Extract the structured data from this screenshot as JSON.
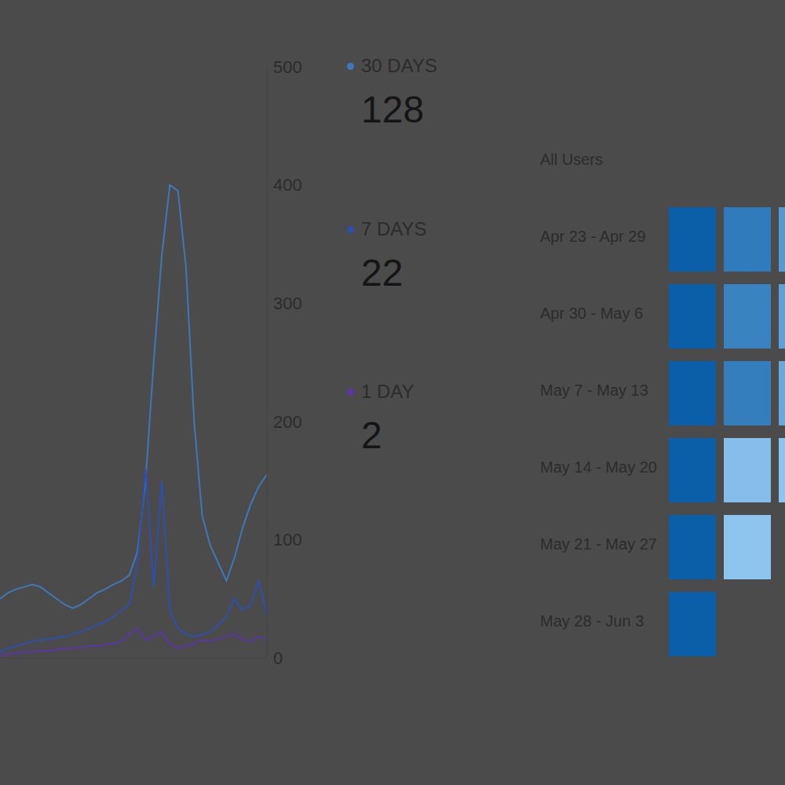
{
  "chart_data": [
    {
      "type": "line",
      "x": [
        0,
        1,
        2,
        3,
        4,
        5,
        6,
        7,
        8,
        9,
        10,
        11,
        12,
        13,
        14,
        15,
        16,
        17,
        18,
        19,
        20,
        21,
        22,
        23,
        24,
        25,
        26,
        27,
        28,
        29,
        30,
        31,
        32,
        33
      ],
      "xlim": [
        0,
        33
      ],
      "ylim": [
        0,
        500
      ],
      "yticks": [
        0,
        100,
        200,
        300,
        400,
        500
      ],
      "grid": false,
      "tick_labels": "y",
      "marker": "none",
      "series": [
        {
          "name": "30 DAYS",
          "total": 128,
          "color": "#3f78b8",
          "values": [
            50,
            55,
            58,
            60,
            62,
            60,
            55,
            50,
            45,
            42,
            45,
            50,
            55,
            58,
            62,
            65,
            70,
            90,
            150,
            250,
            340,
            400,
            395,
            330,
            200,
            120,
            95,
            80,
            65,
            85,
            110,
            130,
            145,
            155
          ]
        },
        {
          "name": "7 DAYS",
          "total": 22,
          "color": "#2f4fae",
          "values": [
            5,
            8,
            10,
            12,
            14,
            15,
            16,
            17,
            18,
            20,
            22,
            25,
            28,
            30,
            35,
            40,
            45,
            80,
            160,
            60,
            150,
            40,
            25,
            20,
            18,
            20,
            22,
            28,
            35,
            50,
            40,
            45,
            65,
            35
          ]
        },
        {
          "name": "1 DAY",
          "total": 2,
          "color": "#5a36a8",
          "values": [
            2,
            3,
            4,
            5,
            5,
            6,
            6,
            7,
            8,
            8,
            9,
            10,
            10,
            11,
            12,
            14,
            20,
            25,
            15,
            18,
            22,
            12,
            8,
            10,
            12,
            15,
            14,
            16,
            18,
            20,
            15,
            14,
            18,
            16
          ]
        }
      ]
    },
    {
      "type": "heatmap",
      "categories": [
        "All Users",
        "Apr 23 - Apr 29",
        "Apr 30 - May 6",
        "May 7 - May 13",
        "May 14 - May 20",
        "May 21 - May 27",
        "May 28 - Jun 3"
      ],
      "cells": [
        [],
        [
          100,
          80,
          60
        ],
        [
          100,
          75,
          55
        ],
        [
          100,
          78,
          50
        ],
        [
          100,
          35,
          30
        ],
        [
          100,
          30
        ],
        [
          100
        ]
      ],
      "color": "#0b5ea8"
    }
  ]
}
